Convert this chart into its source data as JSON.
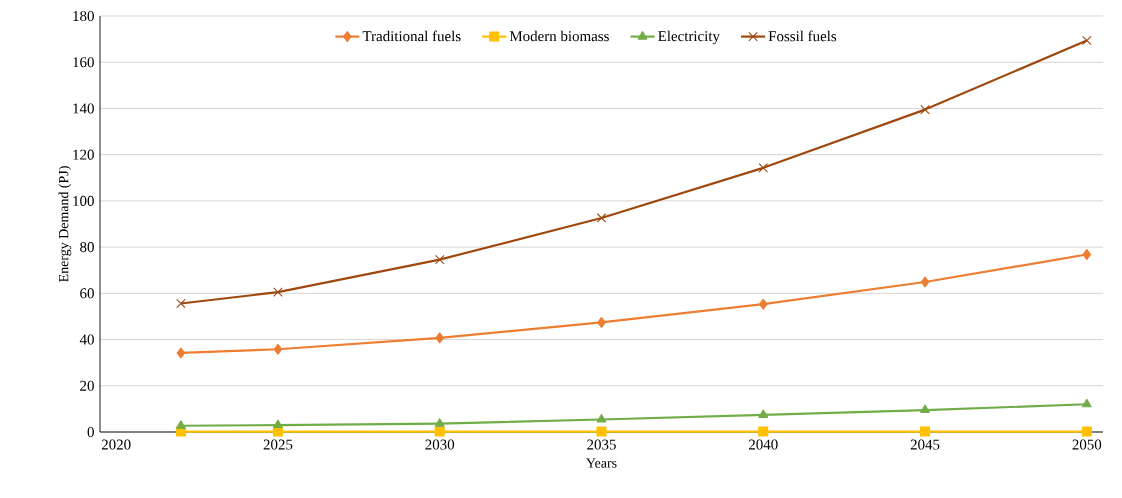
{
  "chart_data": {
    "type": "line",
    "xlabel": "Years",
    "ylabel": "Energy Demand (PJ)",
    "x": [
      2022,
      2025,
      2030,
      2035,
      2040,
      2045,
      2050
    ],
    "series": [
      {
        "name": "Traditional fuels",
        "color": "#ed7d31",
        "marker": "diamond",
        "values": [
          34.2,
          35.8,
          40.7,
          47.4,
          55.3,
          64.9,
          76.8
        ]
      },
      {
        "name": "Modern biomass",
        "color": "#ffc000",
        "marker": "square",
        "values": [
          0.2,
          0.2,
          0.2,
          0.2,
          0.2,
          0.2,
          0.2
        ]
      },
      {
        "name": "Electricity",
        "color": "#70ad47",
        "marker": "triangle",
        "values": [
          2.7,
          3.0,
          3.6,
          5.4,
          7.4,
          9.5,
          12.0
        ]
      },
      {
        "name": "Fossil fuels",
        "color": "#9e480e",
        "marker": "cross",
        "values": [
          55.6,
          60.5,
          74.6,
          92.6,
          114.3,
          139.5,
          169.4
        ]
      }
    ],
    "xlim": [
      2019.5,
      2050.5
    ],
    "ylim": [
      0,
      180
    ],
    "xticks": [
      2020,
      2025,
      2030,
      2035,
      2040,
      2045,
      2050
    ],
    "yticks": [
      0,
      20,
      40,
      60,
      80,
      100,
      120,
      140,
      160,
      180
    ],
    "grid": "y",
    "legend": "top",
    "line_style": "solid"
  }
}
